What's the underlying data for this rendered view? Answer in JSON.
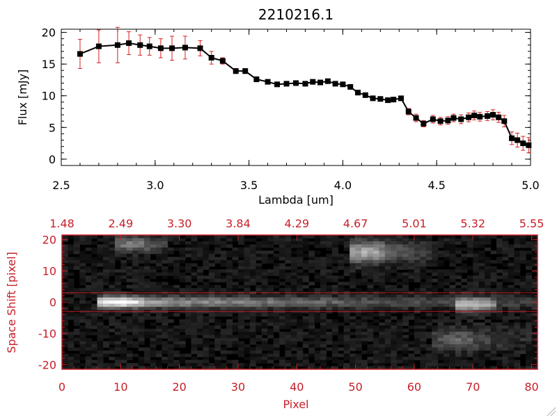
{
  "colors": {
    "background": "#ffffff",
    "axes": "#000000",
    "series_line": "#000000",
    "marker": "#000000",
    "error_bar": "#d42020",
    "image_frame": "#c81e28",
    "image_text": "#c81e28"
  },
  "chart_data": [
    {
      "type": "line",
      "title": "2210216.1",
      "xlabel": "Lambda [um]",
      "ylabel": "Flux [mJy]",
      "xlim": [
        2.5,
        5.0
      ],
      "ylim": [
        -1,
        20.5
      ],
      "xticks": [
        "2.5",
        "3.0",
        "3.5",
        "4.0",
        "4.5",
        "5.0"
      ],
      "yticks": [
        "0",
        "5",
        "10",
        "15",
        "20"
      ],
      "marker": "square",
      "series": [
        {
          "x": [
            2.6,
            2.7,
            2.8,
            2.86,
            2.92,
            2.97,
            3.03,
            3.09,
            3.16,
            3.24,
            3.3,
            3.36,
            3.43,
            3.48,
            3.54,
            3.6,
            3.65,
            3.7,
            3.75,
            3.8,
            3.84,
            3.88,
            3.92,
            3.96,
            4.0,
            4.04,
            4.08,
            4.12,
            4.16,
            4.2,
            4.24,
            4.27,
            4.31,
            4.35,
            4.39,
            4.43,
            4.48,
            4.52,
            4.56,
            4.59,
            4.63,
            4.67,
            4.7,
            4.73,
            4.77,
            4.8,
            4.83,
            4.86,
            4.9,
            4.93,
            4.96,
            4.99
          ],
          "y": [
            16.6,
            17.8,
            18.0,
            18.3,
            18.0,
            17.8,
            17.5,
            17.5,
            17.6,
            17.5,
            16.0,
            15.5,
            13.9,
            13.9,
            12.6,
            12.2,
            11.8,
            11.9,
            12.0,
            11.9,
            12.2,
            12.1,
            12.3,
            11.9,
            11.8,
            11.4,
            10.5,
            10.1,
            9.6,
            9.5,
            9.3,
            9.4,
            9.6,
            7.5,
            6.5,
            5.6,
            6.3,
            6.0,
            6.1,
            6.5,
            6.3,
            6.6,
            6.9,
            6.7,
            6.8,
            7.0,
            6.6,
            6.0,
            3.3,
            3.0,
            2.5,
            2.2
          ],
          "err": [
            2.3,
            2.6,
            2.8,
            1.8,
            1.6,
            1.4,
            1.5,
            1.9,
            1.8,
            1.2,
            1.0,
            0.5,
            0.4,
            0.4,
            0.4,
            0.3,
            0.3,
            0.3,
            0.3,
            0.3,
            0.3,
            0.3,
            0.3,
            0.3,
            0.3,
            0.3,
            0.3,
            0.3,
            0.3,
            0.3,
            0.3,
            0.3,
            0.3,
            0.5,
            0.6,
            0.5,
            0.6,
            0.6,
            0.6,
            0.6,
            0.7,
            0.7,
            0.7,
            0.7,
            0.7,
            0.8,
            0.8,
            0.9,
            1.0,
            1.1,
            1.1,
            1.2
          ]
        }
      ]
    },
    {
      "type": "heatmap",
      "xlabel": "Pixel",
      "ylabel": "Space Shift [pixel]",
      "xlim": [
        0,
        81
      ],
      "ylim": [
        -21.5,
        21.5
      ],
      "xticks": [
        "0",
        "10",
        "20",
        "30",
        "40",
        "50",
        "60",
        "70",
        "80"
      ],
      "yticks": [
        "-20",
        "-10",
        "0",
        "10",
        "20"
      ],
      "top_axis_ticks": [
        {
          "pixel": 0,
          "label": "1.48"
        },
        {
          "pixel": 10,
          "label": "2.49"
        },
        {
          "pixel": 20,
          "label": "3.30"
        },
        {
          "pixel": 30,
          "label": "3.84"
        },
        {
          "pixel": 40,
          "label": "4.29"
        },
        {
          "pixel": 50,
          "label": "4.67"
        },
        {
          "pixel": 60,
          "label": "5.01"
        },
        {
          "pixel": 70,
          "label": "5.32"
        },
        {
          "pixel": 80,
          "label": "5.55"
        }
      ],
      "extraction_aperture_y": [
        -3,
        3
      ],
      "features": [
        {
          "x": [
            7,
            81
          ],
          "y": [
            -1.5,
            1.5
          ],
          "peak_x": 10,
          "intensity": 1.0
        },
        {
          "x": [
            68,
            73
          ],
          "y": [
            -3,
            1
          ],
          "peak_x": 70,
          "intensity": 0.55
        },
        {
          "x": [
            50,
            62
          ],
          "y": [
            12,
            20
          ],
          "peak_x": 52,
          "intensity": 0.6
        },
        {
          "x": [
            10,
            17
          ],
          "y": [
            16,
            21
          ],
          "peak_x": 12,
          "intensity": 0.4
        },
        {
          "x": [
            64,
            79
          ],
          "y": [
            -16,
            -8
          ],
          "peak_x": 68,
          "intensity": 0.3
        }
      ]
    }
  ]
}
